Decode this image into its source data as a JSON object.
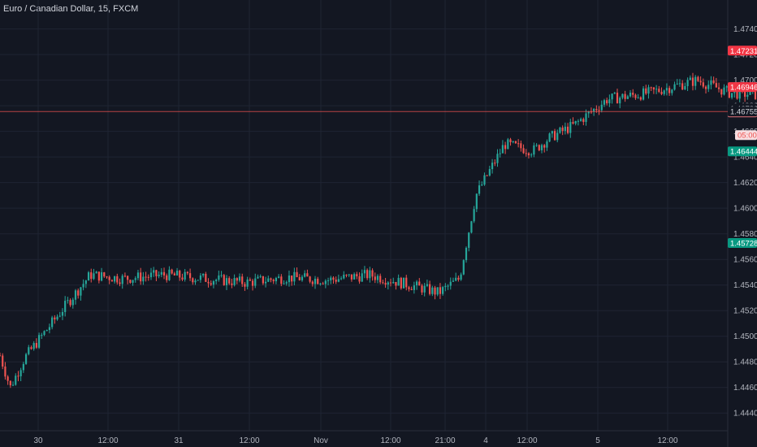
{
  "header": {
    "symbol_title": "Euro / Canadian Dollar, 15, FXCM"
  },
  "colors": {
    "background": "#131722",
    "grid": "#1f2433",
    "up": "#26a69a",
    "down": "#ef5350",
    "profit_zone": "#1b4d2b",
    "loss_zone": "#4d1b22",
    "price_line": "#ef5350"
  },
  "chart_data": {
    "type": "candlestick",
    "title": "Euro / Canadian Dollar, 15, FXCM",
    "ylim": [
      1.443,
      1.4755
    ],
    "y_ticks": [
      "1.47400",
      "1.47200",
      "1.47000",
      "1.46800",
      "1.46600",
      "1.46400",
      "1.46200",
      "1.46000",
      "1.45800",
      "1.45600",
      "1.45400",
      "1.45200",
      "1.45000",
      "1.44800",
      "1.44600",
      "1.44400"
    ],
    "x_ticks": [
      "30",
      "12:00",
      "31",
      "12:00",
      "Nov",
      "12:00",
      "21:00",
      "4",
      "12:00",
      "5",
      "12:00"
    ],
    "grid": true,
    "price_path": [
      [
        0.0,
        1.4485
      ],
      [
        0.25,
        1.446
      ],
      [
        0.6,
        1.4483
      ],
      [
        1.5,
        1.452
      ],
      [
        2.2,
        1.4548
      ],
      [
        3.0,
        1.4545
      ],
      [
        4.0,
        1.4548
      ],
      [
        5.0,
        1.4545
      ],
      [
        6.0,
        1.4542
      ],
      [
        7.0,
        1.4546
      ],
      [
        8.0,
        1.4544
      ],
      [
        9.0,
        1.4548
      ],
      [
        10.0,
        1.454
      ],
      [
        10.7,
        1.4534
      ],
      [
        11.2,
        1.4545
      ],
      [
        11.6,
        1.461
      ],
      [
        12.3,
        1.465
      ],
      [
        13.0,
        1.4645
      ],
      [
        13.4,
        1.4655
      ],
      [
        14.0,
        1.4665
      ],
      [
        14.8,
        1.4685
      ],
      [
        15.8,
        1.469
      ],
      [
        17.0,
        1.47
      ],
      [
        17.8,
        1.469
      ],
      [
        18.8,
        1.4688
      ],
      [
        19.8,
        1.4715
      ],
      [
        20.5,
        1.4705
      ],
      [
        21.0,
        1.468
      ],
      [
        21.5,
        1.466
      ],
      [
        22.0,
        1.4648
      ],
      [
        22.4,
        1.4662
      ],
      [
        23.0,
        1.4668
      ],
      [
        23.8,
        1.4675
      ],
      [
        24.6,
        1.468
      ],
      [
        25.3,
        1.4685
      ],
      [
        26.0,
        1.4683
      ],
      [
        26.8,
        1.4688
      ],
      [
        27.3,
        1.4685
      ],
      [
        27.9,
        1.4685
      ],
      [
        28.5,
        1.4678
      ],
      [
        28.9,
        1.4676
      ]
    ],
    "current_price": 1.46755,
    "current_price_label": "1.46755",
    "price_labels": [
      {
        "value": 1.47231,
        "text": "1.47231",
        "kind": "stop"
      },
      {
        "value": 1.46946,
        "text": "1.46946",
        "kind": "stop"
      },
      {
        "value": 1.4678,
        "text": "1.46780",
        "kind": "plain"
      },
      {
        "value": 1.46749,
        "text": "1.46749",
        "kind": "bid"
      },
      {
        "value": 1.46444,
        "text": "1.46444",
        "kind": "target"
      },
      {
        "value": 1.45728,
        "text": "1.45728",
        "kind": "target"
      }
    ],
    "countdown_label": "05:00",
    "positions": [
      {
        "type": "short",
        "start_day": 29.6,
        "end_day": 31.0,
        "entry": 1.4678,
        "stop": 1.46946,
        "target": 1.46444
      },
      {
        "type": "short",
        "start_day": 32.8,
        "end_day": 38.2,
        "entry": 1.4678,
        "stop": 1.47231,
        "target": 1.45728
      }
    ]
  }
}
